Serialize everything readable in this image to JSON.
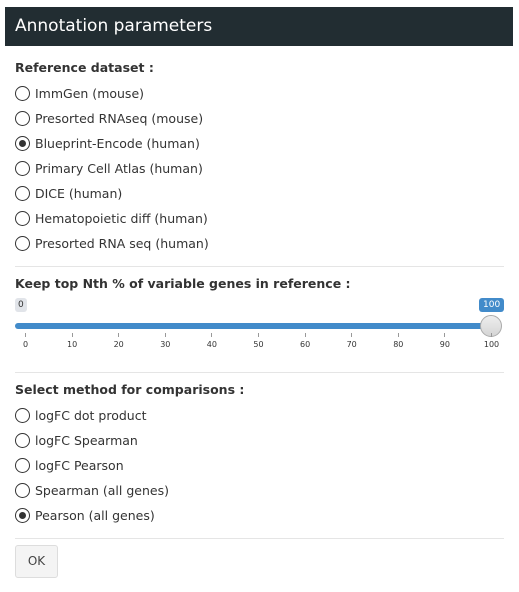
{
  "header": {
    "title": "Annotation parameters"
  },
  "reference": {
    "label": "Reference dataset :",
    "options": [
      {
        "label": "ImmGen (mouse)",
        "checked": false
      },
      {
        "label": "Presorted RNAseq (mouse)",
        "checked": false
      },
      {
        "label": "Blueprint-Encode (human)",
        "checked": true
      },
      {
        "label": "Primary Cell Atlas (human)",
        "checked": false
      },
      {
        "label": "DICE (human)",
        "checked": false
      },
      {
        "label": "Hematopoietic diff (human)",
        "checked": false
      },
      {
        "label": "Presorted RNA seq (human)",
        "checked": false
      }
    ]
  },
  "slider": {
    "label": "Keep top Nth % of variable genes in reference :",
    "min_label": "0",
    "max_label": "100",
    "min": 0,
    "max": 100,
    "value": 100,
    "ticks": [
      "0",
      "10",
      "20",
      "30",
      "40",
      "50",
      "60",
      "70",
      "80",
      "90",
      "100"
    ],
    "accent": "#428bca"
  },
  "method": {
    "label": "Select method for comparisons :",
    "options": [
      {
        "label": "logFC dot product",
        "checked": false
      },
      {
        "label": "logFC Spearman",
        "checked": false
      },
      {
        "label": "logFC Pearson",
        "checked": false
      },
      {
        "label": "Spearman (all genes)",
        "checked": false
      },
      {
        "label": "Pearson (all genes)",
        "checked": true
      }
    ]
  },
  "ok_button": {
    "label": "OK"
  },
  "colors": {
    "header_bg": "#222d32",
    "header_text": "#ffffff"
  }
}
